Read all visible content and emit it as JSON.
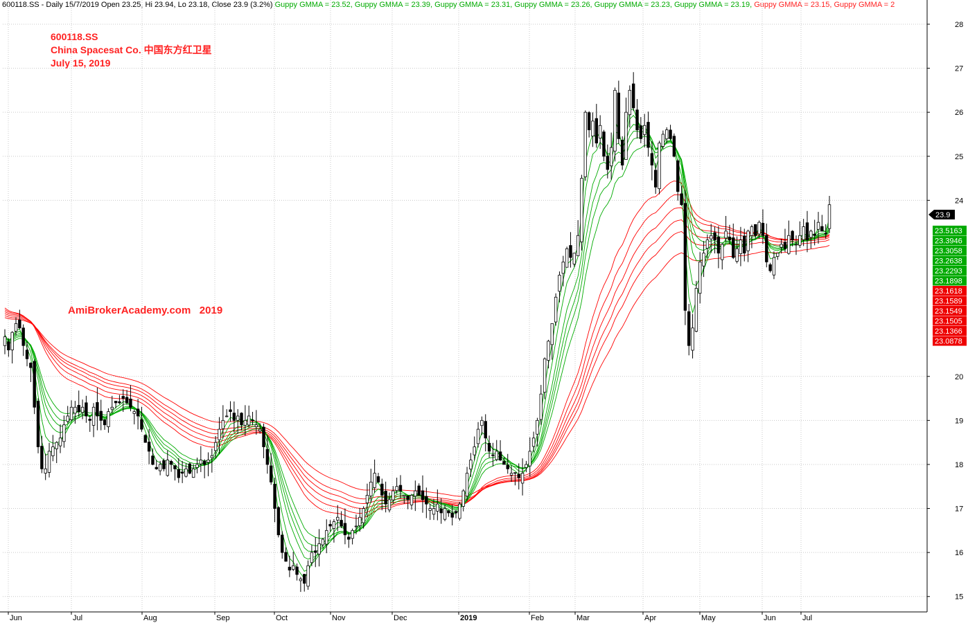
{
  "header": {
    "prefix": "600118.SS - Daily 15/7/2019 Open 23.25, Hi 23.94, Lo 23.18, Close 23.9 (3.2%)",
    "gmma_items": [
      {
        "text": "Guppy GMMA = 23.52,",
        "color": "#00aa00"
      },
      {
        "text": "Guppy GMMA = 23.39,",
        "color": "#00aa00"
      },
      {
        "text": "Guppy GMMA = 23.31,",
        "color": "#00aa00"
      },
      {
        "text": "Guppy GMMA = 23.26,",
        "color": "#00aa00"
      },
      {
        "text": "Guppy GMMA = 23.23,",
        "color": "#00aa00"
      },
      {
        "text": "Guppy GMMA = 23.19,",
        "color": "#00aa00"
      },
      {
        "text": "Guppy GMMA = 23.15,",
        "color": "#ff2222"
      },
      {
        "text": "Guppy GMMA = 2",
        "color": "#ff2222"
      }
    ]
  },
  "title_block": {
    "ticker": "600118.SS",
    "company": "China Spacesat Co.  中国东方红卫星",
    "date": "July 15, 2019"
  },
  "watermark": "AmiBrokerAcademy.com   2019",
  "colors": {
    "short_term": "#00aa00",
    "long_term": "#ff0000",
    "candle": "#000000",
    "grid": "#c8c8c8"
  },
  "chart_data": {
    "type": "candlestick",
    "y_ticks": [
      15,
      16,
      17,
      18,
      19,
      20,
      24,
      25,
      26,
      27,
      28
    ],
    "ylim": [
      14.65,
      28.55
    ],
    "x_labels": [
      "Jun",
      "Jul",
      "Aug",
      "Sep",
      "Oct",
      "Nov",
      "Dec",
      "2019",
      "Feb",
      "Mar",
      "Apr",
      "May",
      "Jun",
      "Jul"
    ],
    "last_close_label": "23.9",
    "gmma_short_labels": [
      "23.5163",
      "23.3946",
      "23.3058",
      "23.2638",
      "23.2293",
      "23.1898"
    ],
    "gmma_long_labels": [
      "23.1618",
      "23.1589",
      "23.1549",
      "23.1505",
      "23.1366",
      "23.0878"
    ],
    "close_series": [
      20.9,
      20.6,
      21.0,
      21.2,
      21.1,
      20.7,
      20.4,
      20.2,
      19.3,
      18.4,
      17.9,
      17.9,
      18.3,
      18.4,
      18.5,
      18.6,
      18.9,
      19.1,
      19.3,
      19.3,
      19.2,
      19.3,
      19.1,
      19.0,
      19.3,
      19.1,
      19.0,
      18.9,
      19.2,
      19.3,
      19.4,
      19.4,
      19.5,
      19.4,
      19.3,
      19.2,
      19.1,
      18.8,
      18.5,
      18.3,
      18.0,
      17.9,
      18.0,
      17.9,
      18.1,
      18.0,
      17.9,
      17.7,
      17.8,
      17.9,
      17.8,
      17.9,
      18.0,
      18.1,
      18.0,
      18.1,
      18.2,
      18.5,
      18.8,
      19.0,
      19.1,
      19.2,
      19.0,
      19.1,
      18.9,
      19.0,
      19.1,
      19.0,
      18.9,
      18.8,
      18.4,
      18.0,
      17.6,
      17.0,
      16.4,
      16.0,
      15.8,
      15.6,
      15.7,
      15.5,
      15.4,
      15.3,
      15.7,
      16.0,
      16.0,
      16.2,
      16.3,
      16.5,
      16.6,
      16.7,
      16.8,
      16.6,
      16.4,
      16.3,
      16.5,
      16.6,
      16.8,
      17.0,
      17.3,
      17.6,
      17.8,
      17.6,
      17.3,
      17.1,
      17.2,
      17.4,
      17.5,
      17.4,
      17.3,
      17.2,
      17.3,
      17.4,
      17.3,
      17.2,
      17.1,
      17.0,
      17.0,
      17.1,
      16.9,
      17.0,
      16.9,
      16.8,
      16.9,
      17.1,
      17.4,
      17.8,
      18.1,
      18.4,
      18.8,
      19.0,
      18.6,
      18.3,
      18.2,
      18.3,
      18.1,
      18.0,
      17.9,
      17.8,
      17.8,
      17.7,
      17.8,
      18.0,
      18.3,
      18.6,
      19.0,
      19.6,
      20.4,
      20.8,
      21.2,
      21.8,
      22.3,
      22.6,
      22.9,
      22.7,
      22.8,
      23.2,
      24.5,
      26.0,
      25.6,
      25.8,
      25.3,
      25.7,
      25.0,
      24.7,
      25.2,
      26.5,
      25.4,
      24.8,
      26.0,
      26.5,
      26.1,
      25.6,
      25.4,
      25.7,
      25.2,
      24.8,
      24.3,
      25.3,
      25.5,
      25.6,
      25.4,
      25.0,
      24.2,
      23.9,
      21.5,
      20.7,
      21.1,
      22.0,
      22.6,
      22.8,
      23.1,
      23.2,
      23.1,
      22.8,
      23.0,
      23.3,
      23.1,
      22.7,
      22.9,
      23.1,
      22.8,
      23.3,
      23.4,
      23.2,
      23.5,
      23.2,
      22.6,
      22.4,
      22.7,
      22.8,
      23.0,
      22.9,
      23.2,
      23.1,
      23.0,
      23.2,
      23.4,
      23.1,
      23.3,
      23.2,
      23.5,
      23.3,
      23.25,
      23.9
    ]
  }
}
